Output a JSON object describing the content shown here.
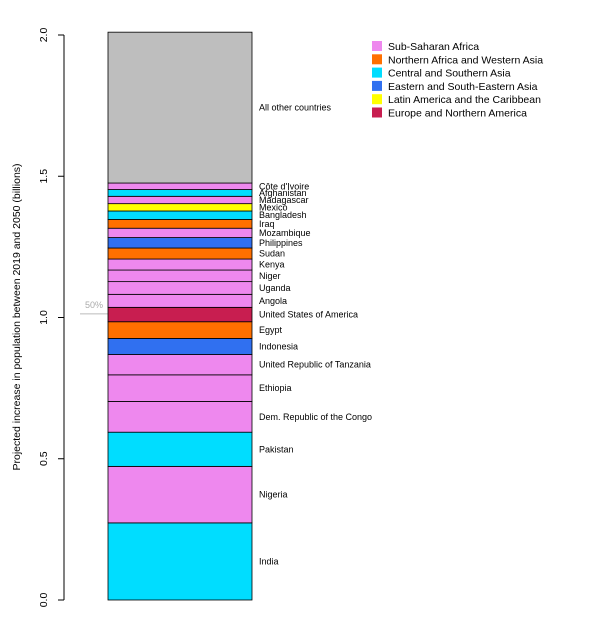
{
  "chart_data": {
    "type": "bar",
    "stacked": true,
    "title": "",
    "xlabel": "",
    "ylabel": "Projected increase in population between 2019 and 2050 (billions)",
    "ylim": [
      0,
      2.0
    ],
    "yticks": [
      "0.0",
      "0.5",
      "1.0",
      "1.5",
      "2.0"
    ],
    "reference_line": {
      "label": "50%",
      "value": 1.013
    },
    "legend_position": "top-right",
    "regions": [
      {
        "name": "Sub-Saharan Africa",
        "color": "#ee88ee"
      },
      {
        "name": "Northern Africa and Western Asia",
        "color": "#ff7000"
      },
      {
        "name": "Central and Southern Asia",
        "color": "#00ddff"
      },
      {
        "name": "Eastern and South-Eastern Asia",
        "color": "#3070f0"
      },
      {
        "name": "Latin America and the Caribbean",
        "color": "#ffff00"
      },
      {
        "name": "Europe and Northern America",
        "color": "#c81e50"
      }
    ],
    "segments": [
      {
        "label": "India",
        "region": 2,
        "value": 0.273
      },
      {
        "label": "Nigeria",
        "region": 0,
        "value": 0.2
      },
      {
        "label": "Pakistan",
        "region": 2,
        "value": 0.121
      },
      {
        "label": "Dem. Republic of the Congo",
        "region": 0,
        "value": 0.109
      },
      {
        "label": "Ethiopia",
        "region": 0,
        "value": 0.094
      },
      {
        "label": "United Republic of Tanzania",
        "region": 0,
        "value": 0.072
      },
      {
        "label": "Indonesia",
        "region": 3,
        "value": 0.057
      },
      {
        "label": "Egypt",
        "region": 1,
        "value": 0.059
      },
      {
        "label": "United States of America",
        "region": 5,
        "value": 0.051
      },
      {
        "label": "Angola",
        "region": 0,
        "value": 0.046
      },
      {
        "label": "Uganda",
        "region": 0,
        "value": 0.045
      },
      {
        "label": "Niger",
        "region": 0,
        "value": 0.041
      },
      {
        "label": "Kenya",
        "region": 0,
        "value": 0.039
      },
      {
        "label": "Sudan",
        "region": 1,
        "value": 0.039
      },
      {
        "label": "Philippines",
        "region": 3,
        "value": 0.037
      },
      {
        "label": "Mozambique",
        "region": 0,
        "value": 0.033
      },
      {
        "label": "Iraq",
        "region": 1,
        "value": 0.031
      },
      {
        "label": "Bangladesh",
        "region": 2,
        "value": 0.03
      },
      {
        "label": "Mexico",
        "region": 4,
        "value": 0.026
      },
      {
        "label": "Madagascar",
        "region": 0,
        "value": 0.026
      },
      {
        "label": "Afghanistan",
        "region": 2,
        "value": 0.024
      },
      {
        "label": "Côte d'Ivoire",
        "region": 0,
        "value": 0.023
      },
      {
        "label": "All other countries",
        "region": -1,
        "value": 0.534
      }
    ]
  }
}
